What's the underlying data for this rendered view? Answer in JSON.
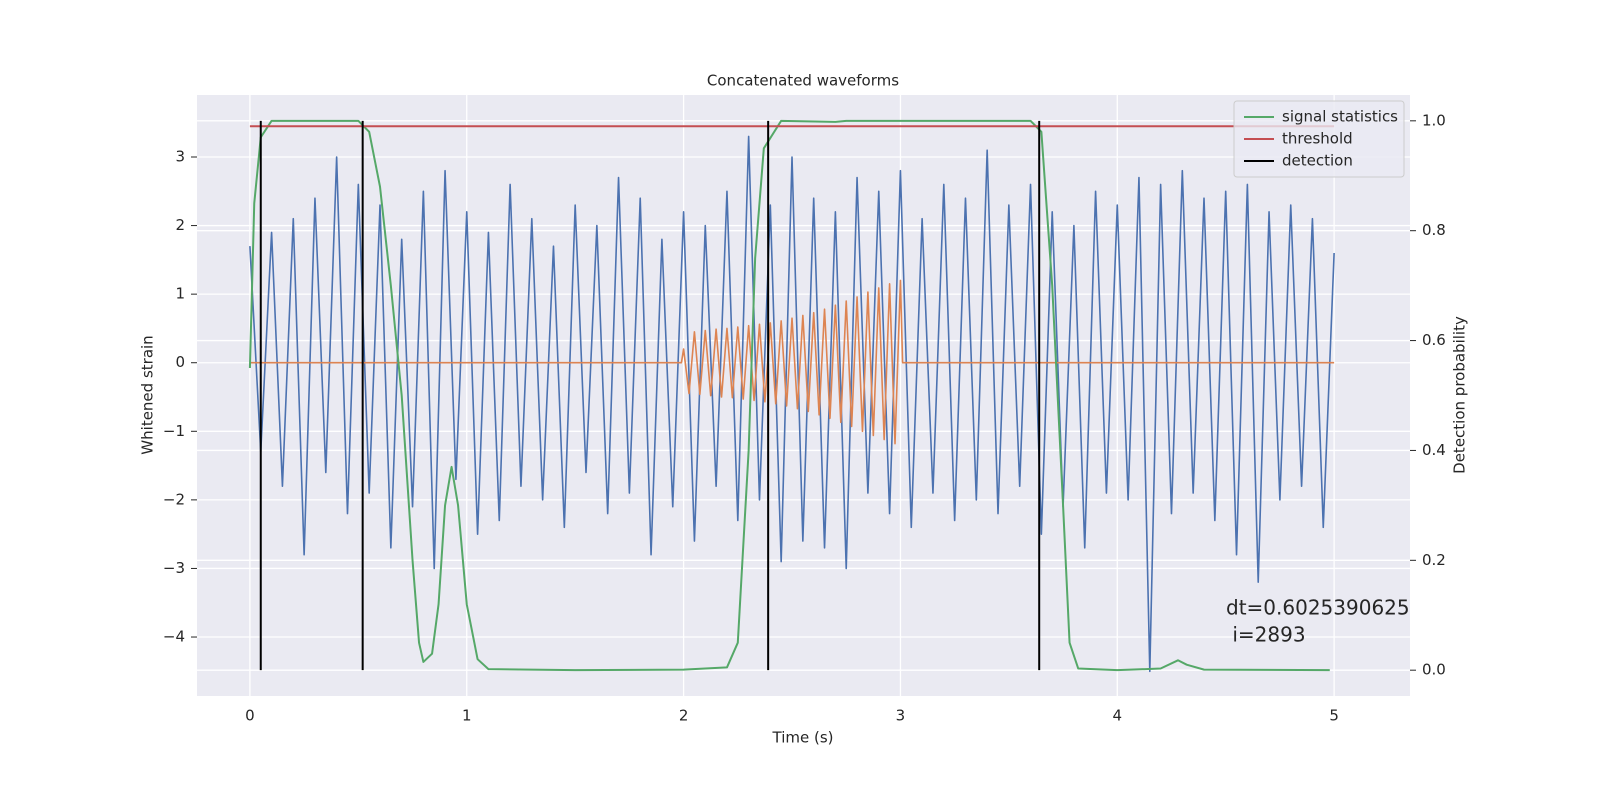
{
  "chart_data": {
    "type": "line",
    "title": "Concatenated waveforms",
    "xlabel": "Time (s)",
    "ylabel": "Whitened strain",
    "y2label": "Detection probability",
    "xlim": [
      -0.244,
      5.35
    ],
    "ylim": [
      -4.86,
      3.904
    ],
    "y2lim": [
      -0.047,
      1.047
    ],
    "xticks": [
      0,
      1,
      2,
      3,
      4,
      5
    ],
    "yticks": [
      {
        "value": -4,
        "label": "−4"
      },
      {
        "value": -3,
        "label": "−3"
      },
      {
        "value": -2,
        "label": "−2"
      },
      {
        "value": -1,
        "label": "−1"
      },
      0,
      1,
      2,
      3
    ],
    "y2ticks": [
      {
        "value": 0,
        "label": "0.0"
      },
      {
        "value": 0.2,
        "label": "0.2"
      },
      {
        "value": 0.4,
        "label": "0.4"
      },
      {
        "value": 0.6,
        "label": "0.6"
      },
      {
        "value": 0.8,
        "label": "0.8"
      },
      {
        "value": 1,
        "label": "1.0"
      }
    ],
    "grid": true,
    "legend": "upper right",
    "annotations": [
      "dt=0.6025390625",
      " i=2893"
    ],
    "series": [
      {
        "color": "#4c72b0",
        "x": [
          0,
          0.05,
          0.1,
          0.15,
          0.2,
          0.25,
          0.3,
          0.35,
          0.4,
          0.45,
          0.5,
          0.55,
          0.6,
          0.65,
          0.7,
          0.75,
          0.8,
          0.85,
          0.9,
          0.95,
          1,
          1.05,
          1.1,
          1.15,
          1.2,
          1.25,
          1.3,
          1.35,
          1.4,
          1.45,
          1.5,
          1.55,
          1.6,
          1.65,
          1.7,
          1.75,
          1.8,
          1.85,
          1.9,
          1.95,
          2,
          2.05,
          2.1,
          2.15,
          2.2,
          2.25,
          2.3,
          2.35,
          2.4,
          2.45,
          2.5,
          2.55,
          2.6,
          2.65,
          2.7,
          2.75,
          2.8,
          2.85,
          2.9,
          2.95,
          3,
          3.05,
          3.1,
          3.15,
          3.2,
          3.25,
          3.3,
          3.35,
          3.4,
          3.45,
          3.5,
          3.55,
          3.6,
          3.65,
          3.7,
          3.75,
          3.8,
          3.85,
          3.9,
          3.95,
          4,
          4.05,
          4.1,
          4.15,
          4.2,
          4.25,
          4.3,
          4.35,
          4.4,
          4.45,
          4.5,
          4.55,
          4.6,
          4.65,
          4.7,
          4.75,
          4.8,
          4.85,
          4.9,
          4.95,
          5
        ],
        "values": [
          1.7,
          -1.3,
          1.9,
          -1.8,
          2.1,
          -2.8,
          2.4,
          -1.6,
          3.0,
          -2.2,
          2.6,
          -1.9,
          2.3,
          -2.7,
          1.8,
          -2.1,
          2.5,
          -3.0,
          2.8,
          -1.7,
          2.2,
          -2.5,
          1.9,
          -2.3,
          2.6,
          -1.8,
          2.1,
          -2.0,
          1.7,
          -2.4,
          2.3,
          -1.6,
          2.0,
          -2.2,
          2.7,
          -1.9,
          2.4,
          -2.8,
          1.8,
          -2.1,
          2.2,
          -2.6,
          2.0,
          -1.8,
          2.5,
          -2.3,
          3.3,
          -2.0,
          2.3,
          -2.9,
          3.0,
          -2.6,
          2.4,
          -2.7,
          2.2,
          -3.0,
          2.7,
          -1.9,
          2.5,
          -2.2,
          2.8,
          -2.4,
          2.1,
          -1.9,
          2.6,
          -2.3,
          2.4,
          -2.0,
          3.1,
          -2.2,
          2.3,
          -1.8,
          2.6,
          -2.5,
          2.2,
          -2.1,
          2.0,
          -2.7,
          2.5,
          -1.9,
          2.3,
          -2.0,
          2.7,
          -4.5,
          2.6,
          -2.2,
          2.8,
          -1.9,
          2.4,
          -2.3,
          2.5,
          -2.8,
          2.6,
          -3.2,
          2.2,
          -2.0,
          2.3,
          -1.8,
          2.1,
          -2.4,
          1.6
        ]
      },
      {
        "color": "#dd8452",
        "x": [
          0,
          1.99,
          2,
          2.025,
          2.05,
          2.075,
          2.1,
          2.125,
          2.15,
          2.175,
          2.2,
          2.225,
          2.25,
          2.275,
          2.3,
          2.325,
          2.35,
          2.375,
          2.4,
          2.425,
          2.45,
          2.475,
          2.5,
          2.525,
          2.55,
          2.575,
          2.6,
          2.625,
          2.65,
          2.675,
          2.7,
          2.725,
          2.75,
          2.775,
          2.8,
          2.825,
          2.85,
          2.875,
          2.9,
          2.925,
          2.95,
          2.975,
          3,
          3.01,
          5
        ],
        "values": [
          0,
          0,
          0.2,
          -0.45,
          0.45,
          -0.46,
          0.47,
          -0.48,
          0.49,
          -0.5,
          0.5,
          -0.51,
          0.52,
          -0.53,
          0.54,
          -0.55,
          0.56,
          -0.57,
          0.58,
          -0.6,
          0.61,
          -0.63,
          0.65,
          -0.67,
          0.69,
          -0.71,
          0.73,
          -0.76,
          0.78,
          -0.81,
          0.84,
          -0.87,
          0.9,
          -0.93,
          0.96,
          -1.0,
          1.03,
          -1.06,
          1.09,
          -1.12,
          1.15,
          -1.18,
          1.2,
          0,
          0
        ]
      },
      {
        "name": "signal statistics",
        "color": "#55a868",
        "axis": "y2",
        "x": [
          0,
          0.02,
          0.05,
          0.1,
          0.5,
          0.55,
          0.6,
          0.65,
          0.7,
          0.75,
          0.78,
          0.8,
          0.84,
          0.87,
          0.9,
          0.93,
          0.96,
          1.0,
          1.05,
          1.1,
          1.5,
          2.0,
          2.2,
          2.25,
          2.3,
          2.33,
          2.37,
          2.45,
          2.7,
          2.75,
          3.6,
          3.65,
          3.7,
          3.75,
          3.78,
          3.82,
          4.0,
          4.2,
          4.28,
          4.32,
          4.4,
          4.98
        ],
        "values": [
          0.55,
          0.85,
          0.97,
          1.0,
          1.0,
          0.98,
          0.88,
          0.7,
          0.5,
          0.2,
          0.05,
          0.015,
          0.03,
          0.12,
          0.3,
          0.37,
          0.3,
          0.12,
          0.02,
          0.002,
          0,
          0.001,
          0.005,
          0.05,
          0.4,
          0.75,
          0.95,
          1.0,
          0.998,
          1.0,
          1.0,
          0.98,
          0.7,
          0.3,
          0.05,
          0.003,
          0,
          0.003,
          0.018,
          0.01,
          0.001,
          0
        ]
      },
      {
        "name": "threshold",
        "color": "#c44e52",
        "axis": "y2",
        "x": [
          0,
          5
        ],
        "values": [
          0.99,
          0.99
        ]
      },
      {
        "name": "detection",
        "color": "#000000",
        "axis": "y2",
        "type": "vlines",
        "x": [
          0.05,
          0.52,
          2.39,
          3.64
        ],
        "span": [
          0,
          1
        ]
      }
    ]
  }
}
